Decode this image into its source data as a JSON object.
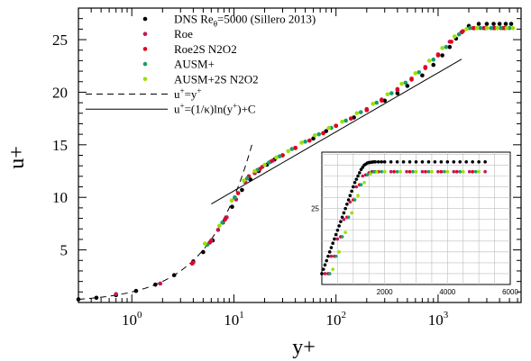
{
  "chart_data": {
    "type": "scatter",
    "xlabel": "y+",
    "ylabel": "u+",
    "xscale": "log",
    "xlim": [
      0.3,
      6500
    ],
    "ylim": [
      0,
      28
    ],
    "grid": false,
    "legend_position": "top-left",
    "x_ticks": [
      {
        "value": 1,
        "label": "10",
        "exp": "0"
      },
      {
        "value": 10,
        "label": "10",
        "exp": "1"
      },
      {
        "value": 100,
        "label": "10",
        "exp": "2"
      },
      {
        "value": 1000,
        "label": "10",
        "exp": "3"
      }
    ],
    "y_ticks": [
      {
        "value": 5,
        "label": "5"
      },
      {
        "value": 10,
        "label": "10"
      },
      {
        "value": 15,
        "label": "15"
      },
      {
        "value": 20,
        "label": "20"
      },
      {
        "value": 25,
        "label": "25"
      }
    ],
    "legend": [
      {
        "kind": "marker",
        "color": "#000000",
        "parts": [
          {
            "t": "DNS Re"
          },
          {
            "t": "θ",
            "sub": true
          },
          {
            "t": "=5000 (Sillero 2013)"
          }
        ]
      },
      {
        "kind": "marker",
        "color": "#c2185b",
        "parts": [
          {
            "t": "Roe"
          }
        ]
      },
      {
        "kind": "marker",
        "color": "#e3001b",
        "parts": [
          {
            "t": "Roe2S N2O2"
          }
        ]
      },
      {
        "kind": "marker",
        "color": "#1a9c6b",
        "parts": [
          {
            "t": "AUSM+"
          }
        ]
      },
      {
        "kind": "marker",
        "color": "#9be000",
        "parts": [
          {
            "t": "AUSM+2S N2O2"
          }
        ]
      },
      {
        "kind": "dashed",
        "color": "#000000",
        "parts": [
          {
            "t": "u"
          },
          {
            "t": "+",
            "sup": true
          },
          {
            "t": "=y"
          },
          {
            "t": "+",
            "sup": true
          }
        ]
      },
      {
        "kind": "solid",
        "color": "#000000",
        "parts": [
          {
            "t": "u"
          },
          {
            "t": "+",
            "sup": true
          },
          {
            "t": "=(1/κ)ln(y"
          },
          {
            "t": "+",
            "sup": true
          },
          {
            "t": ")+C"
          }
        ]
      }
    ],
    "series": [
      {
        "name": "DNS Re_θ=5000 (Sillero 2013)",
        "color": "#000000",
        "x": [
          0.3,
          0.45,
          0.7,
          1.1,
          1.7,
          2.6,
          4.0,
          5.0,
          6.2,
          7.8,
          9.6,
          12,
          14.5,
          17.5,
          21,
          25,
          30,
          40,
          60,
          80,
          100,
          150,
          200,
          300,
          400,
          500,
          700,
          900,
          1100,
          1300,
          1500,
          1700,
          2000,
          2500,
          3000,
          3500,
          4000,
          4600,
          5200
        ],
        "y": [
          0.3,
          0.45,
          0.7,
          1.1,
          1.7,
          2.6,
          3.9,
          4.8,
          5.9,
          7.6,
          9.1,
          10.7,
          11.7,
          12.5,
          13.1,
          13.6,
          14.0,
          14.7,
          15.6,
          16.3,
          16.8,
          17.6,
          18.3,
          19.2,
          19.9,
          20.6,
          21.6,
          22.6,
          23.5,
          24.3,
          25.1,
          25.7,
          26.3,
          26.5,
          26.5,
          26.5,
          26.5,
          26.5,
          26.5
        ]
      },
      {
        "name": "Roe",
        "color": "#c2185b",
        "x": [
          0.7,
          1.9,
          4.0,
          6.0,
          7.0,
          8.5,
          10.5,
          13,
          16,
          19,
          24,
          30,
          40,
          55,
          75,
          100,
          140,
          200,
          280,
          400,
          550,
          750,
          1000,
          1300,
          1700,
          2200,
          2800,
          3500,
          4300
        ],
        "y": [
          0.8,
          1.8,
          3.8,
          5.9,
          6.9,
          8.1,
          9.8,
          11.4,
          12.3,
          12.9,
          13.5,
          14.0,
          14.7,
          15.4,
          16.1,
          16.8,
          17.5,
          18.4,
          19.3,
          20.3,
          21.3,
          22.4,
          23.6,
          24.8,
          25.7,
          26.1,
          26.1,
          26.1,
          26.1
        ]
      },
      {
        "name": "Roe2S N2O2",
        "color": "#e3001b",
        "x": [
          3.9,
          5.8,
          8.2,
          11,
          14,
          18,
          23,
          30,
          40,
          55,
          75,
          100,
          140,
          200,
          280,
          400,
          550,
          750,
          1000,
          1350,
          1750,
          2250,
          2900,
          3600,
          4500
        ],
        "y": [
          3.7,
          5.7,
          7.9,
          10.4,
          12.0,
          12.7,
          13.4,
          14.0,
          14.7,
          15.4,
          16.1,
          16.8,
          17.5,
          18.3,
          19.2,
          20.2,
          21.2,
          22.3,
          23.5,
          24.8,
          25.8,
          26.1,
          26.1,
          26.1,
          26.1
        ]
      },
      {
        "name": "AUSM+",
        "color": "#1a9c6b",
        "x": [
          5.5,
          7.7,
          10.2,
          13.5,
          17,
          22,
          28,
          37,
          50,
          68,
          90,
          125,
          175,
          250,
          350,
          480,
          650,
          900,
          1200,
          1600,
          2050,
          2600,
          3300,
          4100,
          5000
        ],
        "y": [
          5.5,
          7.6,
          10.0,
          11.8,
          12.6,
          13.3,
          13.9,
          14.6,
          15.3,
          16.0,
          16.6,
          17.3,
          18.1,
          19.0,
          19.9,
          20.9,
          21.9,
          23.1,
          24.3,
          25.5,
          26.1,
          26.1,
          26.1,
          26.1,
          26.1
        ]
      },
      {
        "name": "AUSM+2S N2O2",
        "color": "#9be000",
        "x": [
          5.2,
          7.2,
          9.5,
          12.5,
          16,
          20,
          26,
          34,
          46,
          62,
          85,
          115,
          160,
          230,
          320,
          440,
          600,
          820,
          1100,
          1450,
          1900,
          2400,
          3000,
          3800,
          4700,
          5400
        ],
        "y": [
          5.6,
          7.3,
          9.7,
          11.6,
          12.5,
          13.1,
          13.8,
          14.4,
          15.2,
          15.9,
          16.6,
          17.2,
          18.0,
          18.9,
          19.8,
          20.8,
          21.8,
          23.0,
          24.2,
          25.3,
          26.0,
          26.1,
          26.1,
          26.1,
          26.1,
          26.1
        ]
      }
    ],
    "reference_lines": [
      {
        "name": "u+=y+",
        "style": "dashed",
        "x": [
          0.3,
          15
        ],
        "formula": "y"
      },
      {
        "name": "u+=(1/κ)ln(y+)+C",
        "style": "solid",
        "x": [
          6,
          1700
        ],
        "kappa": 0.41,
        "C": 5.0
      }
    ],
    "inset": {
      "xlim": [
        0,
        6000
      ],
      "ylim": [
        21.5,
        27.6
      ],
      "x_ticks": [
        {
          "value": 2000,
          "label": "2000"
        },
        {
          "value": 4000,
          "label": "4000"
        },
        {
          "value": 6000,
          "label": "6000"
        }
      ],
      "y_ticks": [
        {
          "value": 25,
          "label": "25"
        }
      ],
      "grid": true,
      "series": [
        {
          "name": "DNS",
          "color": "#000000",
          "x": [
            0,
            50,
            100,
            150,
            200,
            250,
            300,
            350,
            400,
            450,
            500,
            550,
            600,
            650,
            700,
            750,
            800,
            850,
            900,
            950,
            1000,
            1050,
            1100,
            1150,
            1200,
            1250,
            1300,
            1350,
            1400,
            1450,
            1500,
            1550,
            1600,
            1650,
            1700,
            1800,
            1900,
            2000,
            2200,
            2400,
            2600,
            2800,
            3000,
            3200,
            3400,
            3600,
            3800,
            4000,
            4200,
            4400,
            4600,
            4800,
            5000,
            5200
          ],
          "y": [
            22.0,
            22.2,
            22.4,
            22.6,
            22.8,
            23.0,
            23.2,
            23.4,
            23.6,
            23.8,
            24.0,
            24.2,
            24.4,
            24.6,
            24.8,
            25.0,
            25.2,
            25.4,
            25.6,
            25.8,
            26.0,
            26.2,
            26.35,
            26.5,
            26.65,
            26.8,
            26.9,
            27.0,
            27.05,
            27.1,
            27.12,
            27.13,
            27.14,
            27.15,
            27.15,
            27.15,
            27.15,
            27.15,
            27.15,
            27.15,
            27.15,
            27.15,
            27.15,
            27.15,
            27.15,
            27.15,
            27.15,
            27.15,
            27.15,
            27.15,
            27.15,
            27.15,
            27.15,
            27.15
          ]
        },
        {
          "name": "Roe",
          "color": "#c2185b",
          "x": [
            100,
            300,
            500,
            700,
            900,
            1100,
            1300,
            1500,
            1700,
            2200,
            2700,
            3200,
            3700,
            4200,
            4700,
            5200
          ],
          "y": [
            22.0,
            22.8,
            23.6,
            24.5,
            25.3,
            26.0,
            26.5,
            26.65,
            26.7,
            26.7,
            26.7,
            26.7,
            26.7,
            26.7,
            26.7,
            26.7
          ]
        },
        {
          "name": "Roe2S N2O2",
          "color": "#e3001b",
          "x": [
            200,
            400,
            600,
            800,
            1000,
            1200,
            1400,
            1600,
            1800,
            2300,
            2800,
            3300,
            3800,
            4300,
            4800
          ],
          "y": [
            22.0,
            22.8,
            23.7,
            24.6,
            25.4,
            26.1,
            26.55,
            26.7,
            26.7,
            26.7,
            26.7,
            26.7,
            26.7,
            26.7,
            26.7
          ]
        },
        {
          "name": "AUSM+",
          "color": "#1a9c6b",
          "x": [
            250,
            450,
            650,
            850,
            1050,
            1250,
            1450,
            1650,
            1900,
            2400,
            2900,
            3400,
            3900,
            4400,
            4900
          ],
          "y": [
            22.0,
            22.8,
            23.7,
            24.6,
            25.4,
            26.1,
            26.55,
            26.7,
            26.7,
            26.7,
            26.7,
            26.7,
            26.7,
            26.7,
            26.7
          ]
        },
        {
          "name": "AUSM+2S N2O2",
          "color": "#9be000",
          "x": [
            350,
            550,
            750,
            950,
            1150,
            1350,
            1550,
            1750,
            2000,
            2500,
            3000,
            3500,
            4000,
            4500,
            5000
          ],
          "y": [
            22.2,
            23.0,
            23.9,
            24.8,
            25.6,
            26.2,
            26.6,
            26.7,
            26.7,
            26.7,
            26.7,
            26.7,
            26.7,
            26.7,
            26.7
          ]
        }
      ]
    }
  }
}
